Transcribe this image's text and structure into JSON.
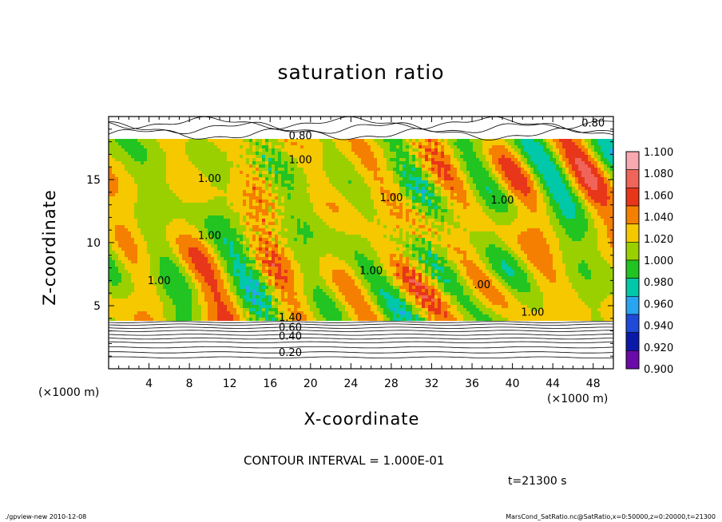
{
  "title": "saturation ratio",
  "chart_data": {
    "type": "heatmap",
    "title": "saturation ratio",
    "xlabel": "X-coordinate",
    "ylabel": "Z-coordinate",
    "x_unit_label": "(×1000 m)",
    "xlim": [
      0,
      50
    ],
    "ylim": [
      0,
      20
    ],
    "x_ticks": [
      4,
      8,
      12,
      16,
      20,
      24,
      28,
      32,
      36,
      40,
      44,
      48
    ],
    "y_ticks": [
      5,
      10,
      15
    ],
    "colorbar": {
      "levels": [
        "1.100",
        "1.080",
        "1.060",
        "1.040",
        "1.020",
        "1.000",
        "0.980",
        "0.960",
        "0.940",
        "0.920",
        "0.900"
      ],
      "colors": [
        "#f7a8b0",
        "#f0645a",
        "#e8361a",
        "#f57f00",
        "#f5c800",
        "#9ad000",
        "#22c422",
        "#00c8a8",
        "#28a4f0",
        "#1f4ad8",
        "#0a1aa8",
        "#6a0aa8"
      ]
    },
    "contour_labels": [
      {
        "text": "0.80",
        "x": 48,
        "z": 19.2
      },
      {
        "text": "0.80",
        "x": 19,
        "z": 18.2
      },
      {
        "text": "1.00",
        "x": 19,
        "z": 16.3
      },
      {
        "text": "1.00",
        "x": 10,
        "z": 14.8
      },
      {
        "text": "1.00",
        "x": 28,
        "z": 13.3
      },
      {
        "text": "1.00",
        "x": 39,
        "z": 13.1
      },
      {
        "text": "1.00",
        "x": 10,
        "z": 10.3
      },
      {
        "text": "1.00",
        "x": 26,
        "z": 7.5
      },
      {
        "text": "1.00",
        "x": 5,
        "z": 6.7
      },
      {
        "text": ".00",
        "x": 37,
        "z": 6.4
      },
      {
        "text": "1.00",
        "x": 42,
        "z": 4.2
      },
      {
        "text": "1.40",
        "x": 18,
        "z": 3.8
      },
      {
        "text": "0.60",
        "x": 18,
        "z": 3.0
      },
      {
        "text": "0.40",
        "x": 18,
        "z": 2.3
      },
      {
        "text": "0.20",
        "x": 18,
        "z": 1.0
      }
    ]
  },
  "contour_interval": "CONTOUR INTERVAL = 1.000E-01",
  "time_label": "t=21300 s",
  "footer_left": "./gpview-new   2010-12-08",
  "footer_right": "MarsCond_SatRatio.nc@SatRatio,x=0:50000,z=0:20000,t=21300"
}
